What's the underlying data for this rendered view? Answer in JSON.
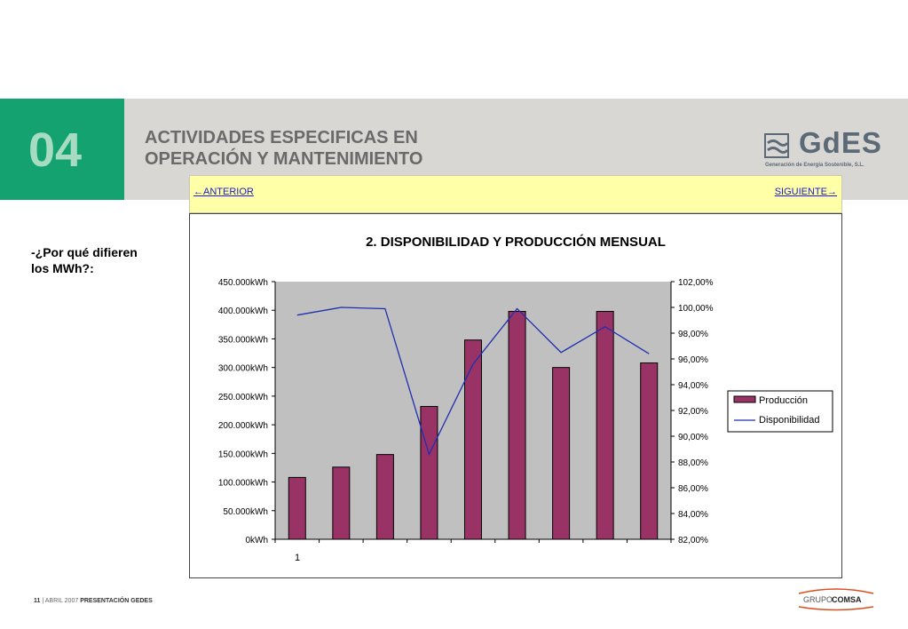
{
  "header": {
    "section_number": "04",
    "title_line1": "ACTIVIDADES ESPECIFICAS EN",
    "title_line2": "OPERACIÓN Y MANTENIMIENTO",
    "logo_text": "GdES",
    "logo_subtitle": "Generación de Energía Sostenible, S.L."
  },
  "nav": {
    "prev_label": "←ANTERIOR",
    "next_label": "SIGUIENTE→"
  },
  "question": "-¿Por qué difieren\nlos  MWh?:",
  "footer": {
    "page": "11",
    "date": "ABRIL 2007",
    "doc": "PRESENTACIÓN GEDES",
    "brand_part1": "GRUPO",
    "brand_part2": "COMSA"
  },
  "colors": {
    "accent_green": "#14a370",
    "bar_color": "#993366",
    "line_color": "#1f2fb0",
    "plot_bg": "#c0c0c0"
  },
  "chart_data": {
    "type": "bar",
    "title": "2. DISPONIBILIDAD Y PRODUCCIÓN MENSUAL",
    "x_tick_label": "1",
    "y_ticks_left": [
      "450.000kWh",
      "400.000kWh",
      "350.000kWh",
      "300.000kWh",
      "250.000kWh",
      "200.000kWh",
      "150.000kWh",
      "100.000kWh",
      "50.000kWh",
      "0kWh"
    ],
    "y_ticks_right": [
      "102,00%",
      "100,00%",
      "98,00%",
      "96,00%",
      "94,00%",
      "92,00%",
      "90,00%",
      "88,00%",
      "86,00%",
      "84,00%",
      "82,00%"
    ],
    "ylim_left": [
      0,
      450000
    ],
    "ylim_right": [
      82,
      102
    ],
    "grid": false,
    "legend_position": "right",
    "series": [
      {
        "name": "Producción",
        "type": "bar",
        "axis": "left",
        "values": [
          108000,
          126000,
          148000,
          232000,
          348000,
          398000,
          300000,
          398000,
          308000
        ]
      },
      {
        "name": "Disponibilidad",
        "type": "line",
        "axis": "right",
        "values": [
          99.4,
          100.0,
          99.9,
          88.6,
          95.6,
          99.9,
          96.5,
          98.5,
          96.4
        ]
      }
    ]
  }
}
